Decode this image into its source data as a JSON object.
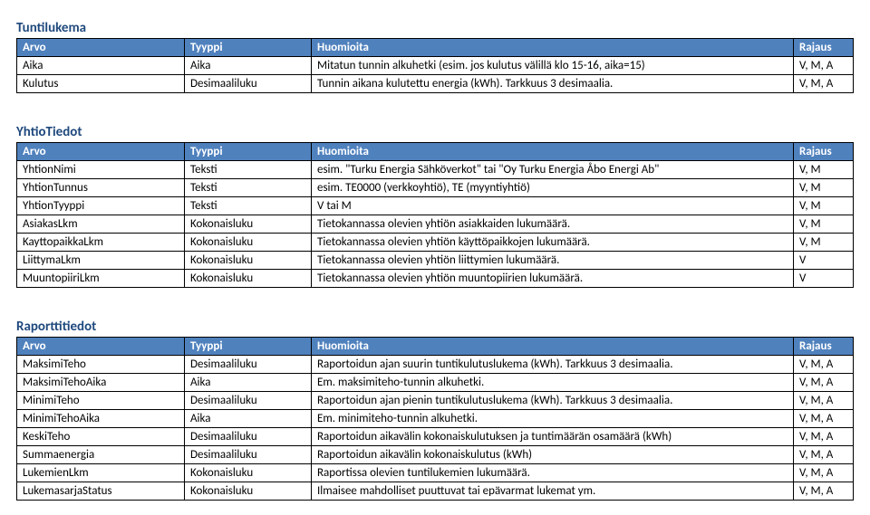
{
  "columns": [
    "Arvo",
    "Tyyppi",
    "Huomioita",
    "Rajaus"
  ],
  "sections": [
    {
      "title": "Tuntilukema",
      "rows": [
        [
          "Aika",
          "Aika",
          "Mitatun tunnin alkuhetki (esim. jos kulutus välillä klo 15-16, aika=15)",
          "V, M, A"
        ],
        [
          "Kulutus",
          "Desimaaliluku",
          "Tunnin aikana kulutettu energia (kWh). Tarkkuus 3 desimaalia.",
          "V, M, A"
        ]
      ]
    },
    {
      "title": "YhtioTiedot",
      "rows": [
        [
          "YhtionNimi",
          "Teksti",
          "esim. \"Turku Energia Sähköverkot\" tai \"Oy Turku Energia Åbo Energi Ab\"",
          "V, M"
        ],
        [
          "YhtionTunnus",
          "Teksti",
          "esim. TE0000 (verkkoyhtiö), TE (myyntiyhtiö)",
          "V, M"
        ],
        [
          "YhtionTyyppi",
          "Teksti",
          "V tai M",
          "V, M"
        ],
        [
          "AsiakasLkm",
          "Kokonaisluku",
          "Tietokannassa olevien yhtiön asiakkaiden lukumäärä.",
          "V, M"
        ],
        [
          "KayttopaikkaLkm",
          "Kokonaisluku",
          "Tietokannassa olevien yhtiön käyttöpaikkojen lukumäärä.",
          "V, M"
        ],
        [
          "LiittymaLkm",
          "Kokonaisluku",
          "Tietokannassa olevien yhtiön liittymien lukumäärä.",
          "V"
        ],
        [
          "MuuntopiiriLkm",
          "Kokonaisluku",
          "Tietokannassa olevien yhtiön muuntopiirien lukumäärä.",
          "V"
        ]
      ]
    },
    {
      "title": "Raporttitiedot",
      "rows": [
        [
          "MaksimiTeho",
          "Desimaaliluku",
          "Raportoidun ajan suurin tuntikulutuslukema (kWh). Tarkkuus 3 desimaalia.",
          "V, M, A"
        ],
        [
          "MaksimiTehoAika",
          "Aika",
          "Em. maksimiteho-tunnin alkuhetki.",
          "V, M, A"
        ],
        [
          "MinimiTeho",
          "Desimaaliluku",
          "Raportoidun ajan pienin tuntikulutuslukema (kWh). Tarkkuus 3 desimaalia.",
          "V, M, A"
        ],
        [
          "MinimiTehoAika",
          "Aika",
          "Em. minimiteho-tunnin alkuhetki.",
          "V, M, A"
        ],
        [
          "KeskiTeho",
          "Desimaaliluku",
          "Raportoidun aikavälin kokonaiskulutuksen ja tuntimäärän osamäärä (kWh)",
          "V, M, A"
        ],
        [
          "Summaenergia",
          "Desimaaliluku",
          "Raportoidun aikavälin kokonaiskulutus (kWh)",
          "V, M, A"
        ],
        [
          "LukemienLkm",
          "Kokonaisluku",
          "Raportissa olevien tuntilukemien lukumäärä.",
          "V, M, A"
        ],
        [
          "LukemasarjaStatus",
          "Kokonaisluku",
          "Ilmaisee mahdolliset puuttuvat tai epävarmat lukemat ym.",
          "V, M, A"
        ]
      ]
    }
  ]
}
